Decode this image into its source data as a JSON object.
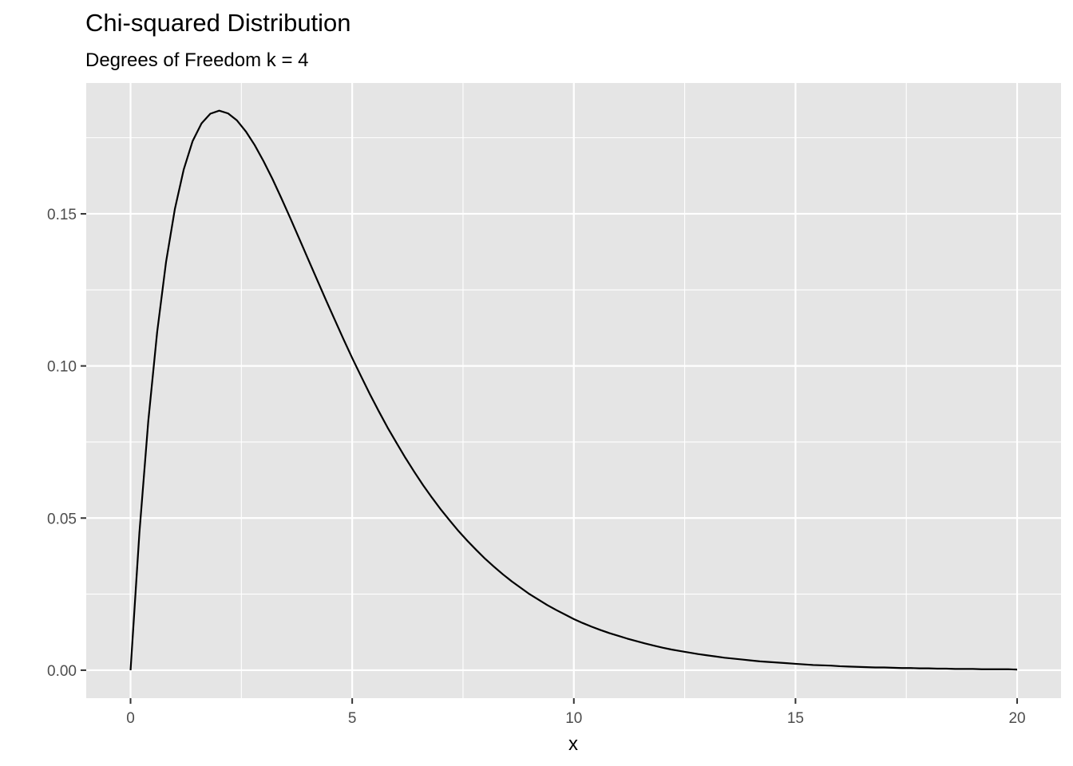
{
  "chart_data": {
    "type": "line",
    "title": "Chi-squared Distribution",
    "subtitle": "Degrees of Freedom k = 4",
    "xlabel": "x",
    "ylabel": "",
    "xlim": [
      -1,
      20.99
    ],
    "ylim": [
      -0.0092,
      0.193
    ],
    "x_ticks": [
      0,
      5,
      10,
      15,
      20
    ],
    "x_tick_labels": [
      "0",
      "5",
      "10",
      "15",
      "20"
    ],
    "y_ticks": [
      0.0,
      0.05,
      0.1,
      0.15
    ],
    "y_tick_labels": [
      "0.00",
      "0.05",
      "0.10",
      "0.15"
    ],
    "grid": true,
    "panel_background": "#e5e5e5",
    "grid_color": "#ffffff",
    "line_color": "#000000",
    "series": [
      {
        "x": [
          0,
          0.2,
          0.4,
          0.6,
          0.8,
          1.0,
          1.2,
          1.4,
          1.6,
          1.8,
          2.0,
          2.2,
          2.4,
          2.6,
          2.8,
          3.0,
          3.2,
          3.4,
          3.6,
          3.8,
          4.0,
          4.2,
          4.4,
          4.6,
          4.8,
          5.0,
          5.2,
          5.4,
          5.6,
          5.8,
          6.0,
          6.2,
          6.4,
          6.6,
          6.8,
          7.0,
          7.2,
          7.4,
          7.6,
          7.8,
          8.0,
          8.2,
          8.4,
          8.6,
          8.8,
          9.0,
          9.2,
          9.4,
          9.6,
          9.8,
          10.0,
          10.2,
          10.4,
          10.6,
          10.8,
          11.0,
          11.2,
          11.4,
          11.6,
          11.8,
          12.0,
          12.2,
          12.4,
          12.6,
          12.8,
          13.0,
          13.2,
          13.4,
          13.6,
          13.8,
          14.0,
          14.2,
          14.4,
          14.6,
          14.8,
          15.0,
          15.2,
          15.4,
          15.6,
          15.8,
          16.0,
          16.2,
          16.4,
          16.6,
          16.8,
          17.0,
          17.2,
          17.4,
          17.6,
          17.8,
          18.0,
          18.2,
          18.4,
          18.6,
          18.8,
          19.0,
          19.2,
          19.4,
          19.6,
          19.8,
          20.0
        ],
        "values": [
          0.0,
          0.0452,
          0.0819,
          0.1111,
          0.1341,
          0.1516,
          0.1646,
          0.1739,
          0.1797,
          0.1829,
          0.1839,
          0.183,
          0.1807,
          0.1771,
          0.1726,
          0.1673,
          0.1615,
          0.1552,
          0.1487,
          0.142,
          0.1353,
          0.1286,
          0.1219,
          0.1154,
          0.1089,
          0.1026,
          0.0966,
          0.0907,
          0.0851,
          0.0797,
          0.0747,
          0.0698,
          0.0652,
          0.0608,
          0.0567,
          0.0528,
          0.0492,
          0.0457,
          0.0425,
          0.0395,
          0.0366,
          0.034,
          0.0315,
          0.0292,
          0.0271,
          0.025,
          0.0232,
          0.0214,
          0.0198,
          0.0183,
          0.0168,
          0.0155,
          0.0143,
          0.0132,
          0.0122,
          0.0113,
          0.0104,
          0.0096,
          0.0088,
          0.0081,
          0.0074,
          0.0068,
          0.0063,
          0.0058,
          0.0053,
          0.0049,
          0.0045,
          0.0041,
          0.0038,
          0.0035,
          0.0032,
          0.0029,
          0.0027,
          0.0025,
          0.0023,
          0.0021,
          0.0019,
          0.0017,
          0.0016,
          0.0015,
          0.0013,
          0.0012,
          0.0011,
          0.001,
          0.0009,
          0.0009,
          0.0008,
          0.0007,
          0.0007,
          0.0006,
          0.0006,
          0.0005,
          0.0005,
          0.0004,
          0.0004,
          0.0004,
          0.0003,
          0.0003,
          0.0003,
          0.0003,
          0.0002
        ]
      }
    ]
  }
}
